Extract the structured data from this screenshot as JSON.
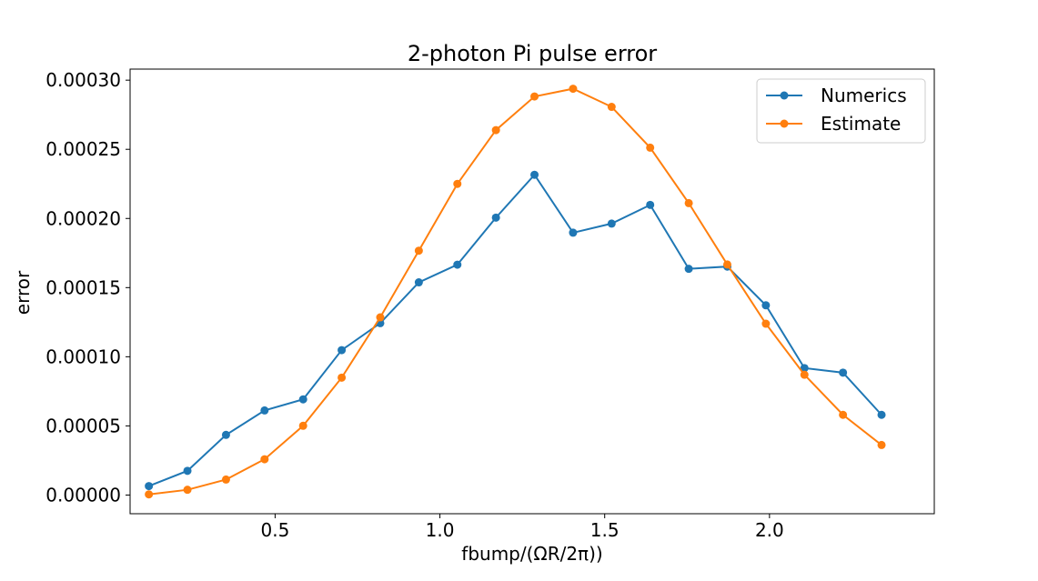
{
  "chart_data": {
    "type": "line",
    "title": "2-photon Pi pulse error",
    "xlabel": "fbump/(ΩR/2π))",
    "ylabel": "error",
    "xlim": [
      0.06,
      2.5
    ],
    "ylim": [
      -1.35e-05,
      0.000308
    ],
    "grid": false,
    "legend_position": "top-right",
    "x_ticks": [
      {
        "value": 0.5,
        "label": "0.5"
      },
      {
        "value": 1.0,
        "label": "1.0"
      },
      {
        "value": 1.5,
        "label": "1.5"
      },
      {
        "value": 2.0,
        "label": "2.0"
      }
    ],
    "y_ticks": [
      {
        "value": 0.0,
        "label": "0.00000"
      },
      {
        "value": 5e-05,
        "label": "0.00005"
      },
      {
        "value": 0.0001,
        "label": "0.00010"
      },
      {
        "value": 0.00015,
        "label": "0.00015"
      },
      {
        "value": 0.0002,
        "label": "0.00020"
      },
      {
        "value": 0.00025,
        "label": "0.00025"
      },
      {
        "value": 0.0003,
        "label": "0.00030"
      }
    ],
    "x": [
      0.117,
      0.234,
      0.351,
      0.468,
      0.585,
      0.702,
      0.819,
      0.936,
      1.053,
      1.17,
      1.287,
      1.404,
      1.521,
      1.638,
      1.755,
      1.872,
      1.989,
      2.106,
      2.223,
      2.34
    ],
    "series": [
      {
        "name": "Numerics",
        "color": "#1f77b4",
        "marker": "circle",
        "values": [
          6.5e-06,
          1.75e-05,
          4.35e-05,
          6.12e-05,
          6.92e-05,
          0.0001048,
          0.0001243,
          0.0001538,
          0.0001666,
          0.0002006,
          0.0002316,
          0.0001897,
          0.0001963,
          0.0002098,
          0.0001636,
          0.0001652,
          0.0001372,
          9.18e-05,
          8.85e-05,
          5.8e-05
        ]
      },
      {
        "name": "Estimate",
        "color": "#ff7f0e",
        "marker": "circle",
        "values": [
          5e-07,
          3.8e-06,
          1.12e-05,
          2.59e-05,
          5.01e-05,
          8.49e-05,
          0.0001285,
          0.0001767,
          0.000225,
          0.0002639,
          0.0002882,
          0.0002938,
          0.0002807,
          0.0002512,
          0.0002111,
          0.0001667,
          0.0001239,
          8.7e-05,
          5.8e-05,
          3.62e-05
        ]
      }
    ]
  }
}
